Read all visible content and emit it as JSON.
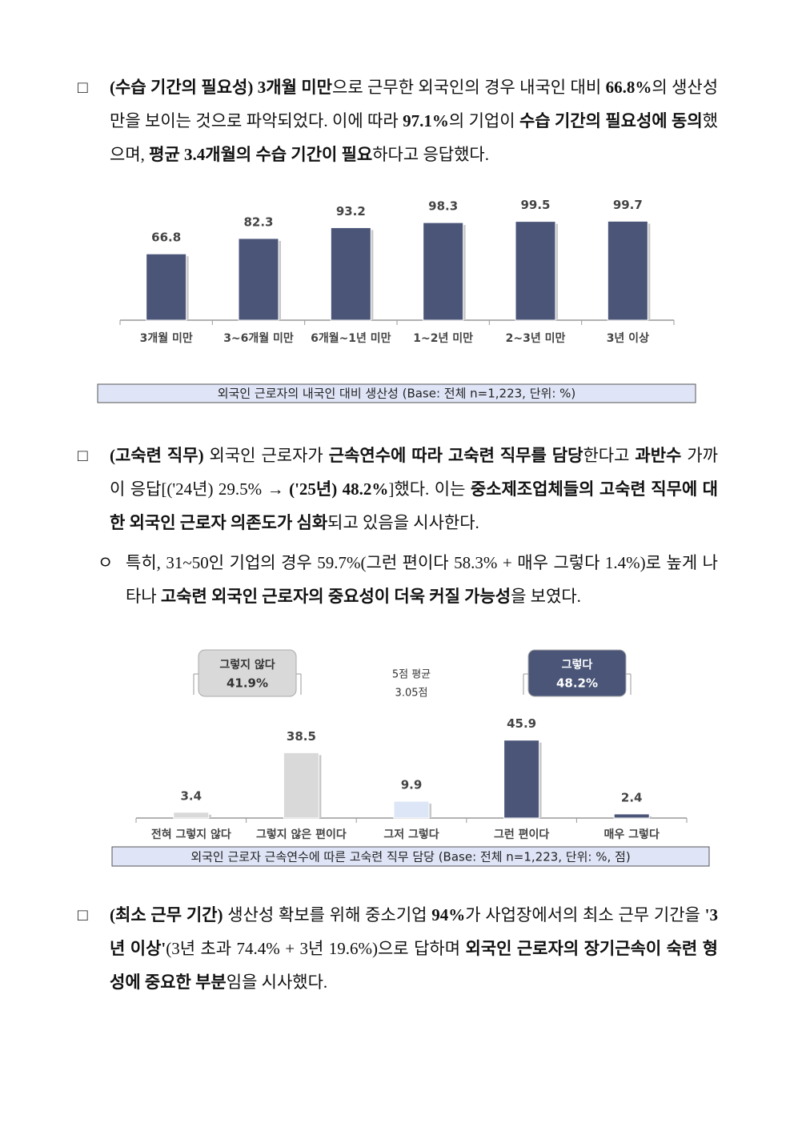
{
  "paragraphs": [
    {
      "marker": "□",
      "segments": [
        {
          "text": "(수습 기간의 필요성)",
          "bold": true
        },
        {
          "text": " "
        },
        {
          "text": "3개월 미만",
          "bold": true
        },
        {
          "text": "으로 근무한 외국인의 경우 내국인 대비 "
        },
        {
          "text": "66.8%",
          "bold": true
        },
        {
          "text": "의 생산성만을 보이는 것으로 파악되었다. 이에 따라 "
        },
        {
          "text": "97.1%",
          "bold": true
        },
        {
          "text": "의 기업이 "
        },
        {
          "text": "수습 기간의 필요성에 동의",
          "bold": true
        },
        {
          "text": "했으며, "
        },
        {
          "text": "평균 3.4개월의 수습 기간이 필요",
          "bold": true
        },
        {
          "text": "하다고 응답했다."
        }
      ]
    },
    {
      "marker": "□",
      "segments": [
        {
          "text": "(고숙련 직무)",
          "bold": true
        },
        {
          "text": " 외국인 근로자가 "
        },
        {
          "text": "근속연수에 따라 고숙련 직무를 담당",
          "bold": true
        },
        {
          "text": "한다고 "
        },
        {
          "text": "과반수",
          "bold": true
        },
        {
          "text": " 가까이 응답[('24년) 29.5% → "
        },
        {
          "text": "('25년) 48.2%",
          "bold": true
        },
        {
          "text": "]했다. 이는 "
        },
        {
          "text": "중소제조업체들의 고숙련 직무에 대한 외국인 근로자 의존도가 심화",
          "bold": true
        },
        {
          "text": "되고 있음을 시사한다."
        }
      ]
    },
    {
      "marker": "ㅇ",
      "segments": [
        {
          "text": "특히, 31~50인 기업의 경우 59.7%(그런 편이다 58.3% + 매우 그렇다 1.4%)로 높게 나타나 "
        },
        {
          "text": "고숙련 외국인 근로자의 중요성이 더욱 커질 가능성",
          "bold": true
        },
        {
          "text": "을 보였다."
        }
      ]
    },
    {
      "marker": "□",
      "segments": [
        {
          "text": "(최소 근무 기간)",
          "bold": true
        },
        {
          "text": " 생산성 확보를 위해 중소기업 "
        },
        {
          "text": "94%",
          "bold": true
        },
        {
          "text": "가 사업장에서의 최소 근무 기간을 "
        },
        {
          "text": "'3년 이상'",
          "bold": true
        },
        {
          "text": "(3년 초과 74.4% + 3년 19.6%)으로 답하며 "
        },
        {
          "text": "외국인 근로자의 장기근속이 숙련 형성에 중요한 부분",
          "bold": true
        },
        {
          "text": "임을 시사했다."
        }
      ]
    }
  ],
  "chart_data": [
    {
      "type": "bar",
      "caption": "외국인 근로자의 내국인 대비 생산성 (Base: 전체 n=1,223, 단위: %)",
      "categories": [
        "3개월 미만",
        "3~6개월 미만",
        "6개월~1년 미만",
        "1~2년 미만",
        "2~3년 미만",
        "3년 이상"
      ],
      "values": [
        66.8,
        82.3,
        93.2,
        98.3,
        99.5,
        99.7
      ],
      "color": "#4a5578"
    },
    {
      "type": "bar",
      "caption": "외국인 근로자 근속연수에 따른 고숙련 직무 담당 (Base: 전체 n=1,223, 단위: %, 점)",
      "categories": [
        "전혀 그렇지 않다",
        "그렇지 않은 편이다",
        "그저 그렇다",
        "그런 편이다",
        "매우 그렇다"
      ],
      "values": [
        3.4,
        38.5,
        9.9,
        45.9,
        2.4
      ],
      "colors": [
        "#d9d9d9",
        "#d9d9d9",
        "#dde6f7",
        "#4a5578",
        "#4a5578"
      ],
      "summary": [
        {
          "label": "그렇지 않다",
          "value": "41.9%"
        },
        {
          "label": "그렇다",
          "value": "48.2%"
        }
      ],
      "average": {
        "label": "5점 평균",
        "value": "3.05점"
      }
    }
  ]
}
